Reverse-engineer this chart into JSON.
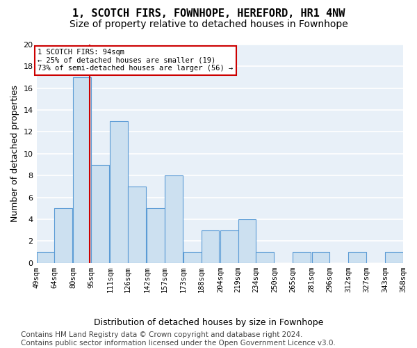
{
  "title": "1, SCOTCH FIRS, FOWNHOPE, HEREFORD, HR1 4NW",
  "subtitle": "Size of property relative to detached houses in Fownhope",
  "xlabel": "Distribution of detached houses by size in Fownhope",
  "ylabel": "Number of detached properties",
  "bar_color": "#cce0f0",
  "bar_edge_color": "#5b9bd5",
  "background_color": "#e8f0f8",
  "grid_color": "#ffffff",
  "bins": [
    49,
    64,
    80,
    95,
    111,
    126,
    142,
    157,
    173,
    188,
    204,
    219,
    234,
    250,
    265,
    281,
    296,
    312,
    327,
    343,
    358
  ],
  "bin_labels": [
    "49sqm",
    "64sqm",
    "80sqm",
    "95sqm",
    "111sqm",
    "126sqm",
    "142sqm",
    "157sqm",
    "173sqm",
    "188sqm",
    "204sqm",
    "219sqm",
    "234sqm",
    "250sqm",
    "265sqm",
    "281sqm",
    "296sqm",
    "312sqm",
    "327sqm",
    "343sqm",
    "358sqm"
  ],
  "counts": [
    1,
    5,
    17,
    9,
    13,
    7,
    5,
    8,
    1,
    3,
    3,
    4,
    1,
    0,
    1,
    1,
    0,
    1,
    0,
    1
  ],
  "vline_x": 94,
  "vline_color": "#cc0000",
  "annotation_text": "1 SCOTCH FIRS: 94sqm\n← 25% of detached houses are smaller (19)\n73% of semi-detached houses are larger (56) →",
  "annotation_box_color": "#cc0000",
  "ylim": [
    0,
    20
  ],
  "yticks": [
    0,
    2,
    4,
    6,
    8,
    10,
    12,
    14,
    16,
    18,
    20
  ],
  "footer_text": "Contains HM Land Registry data © Crown copyright and database right 2024.\nContains public sector information licensed under the Open Government Licence v3.0.",
  "title_fontsize": 11,
  "subtitle_fontsize": 10,
  "label_fontsize": 9,
  "tick_fontsize": 7.5,
  "footer_fontsize": 7.5
}
